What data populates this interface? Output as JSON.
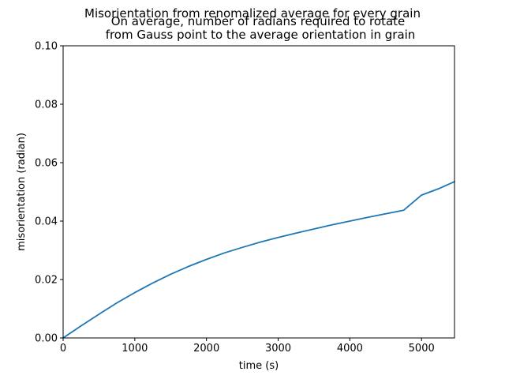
{
  "chart_data": {
    "type": "line",
    "suptitle": "Misorientation from renomalized average for every grain",
    "title_lines": [
      "On average, number of radians required to rotate",
      "from Gauss point to the average orientation in grain"
    ],
    "xlabel": "time (s)",
    "ylabel": "misorientation (radian)",
    "xlim": [
      0,
      5460
    ],
    "ylim": [
      0,
      0.1
    ],
    "xticks": [
      0,
      1000,
      2000,
      3000,
      4000,
      5000
    ],
    "xtick_labels": [
      "0",
      "1000",
      "2000",
      "3000",
      "4000",
      "5000"
    ],
    "yticks": [
      0,
      0.02,
      0.04,
      0.06,
      0.08,
      0.1
    ],
    "ytick_labels": [
      "0.00",
      "0.02",
      "0.04",
      "0.06",
      "0.08",
      "0.10"
    ],
    "grid": false,
    "legend": "none",
    "series": [
      {
        "color": "#1f77b4",
        "x": [
          0,
          250,
          500,
          750,
          1000,
          1250,
          1500,
          1750,
          2000,
          2250,
          2500,
          2750,
          3000,
          3250,
          3500,
          3750,
          4000,
          4250,
          4500,
          4750,
          5000,
          5250,
          5460
        ],
        "y": [
          0.0,
          0.0041,
          0.0081,
          0.012,
          0.0155,
          0.0188,
          0.0218,
          0.0245,
          0.0269,
          0.0291,
          0.031,
          0.0328,
          0.0344,
          0.0359,
          0.0373,
          0.0387,
          0.04,
          0.0413,
          0.0425,
          0.0437,
          0.0489,
          0.0512,
          0.0535
        ]
      }
    ]
  }
}
